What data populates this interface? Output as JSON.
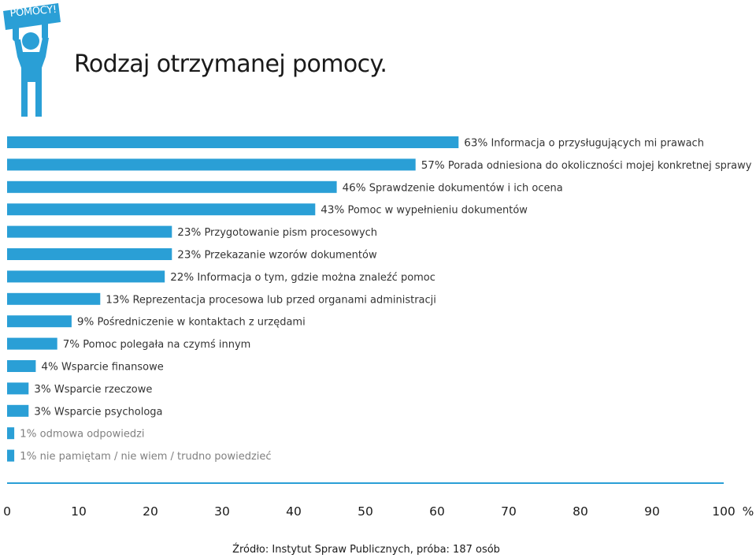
{
  "badge": {
    "label": "POMOCY!"
  },
  "header": {
    "title": "Rodzaj otrzymanej pomocy."
  },
  "chart_data": {
    "type": "bar",
    "orientation": "horizontal",
    "title": "Rodzaj otrzymanej pomocy.",
    "xlim": [
      0,
      100
    ],
    "x_ticks": [
      "0",
      "10",
      "20",
      "30",
      "40",
      "50",
      "60",
      "70",
      "80",
      "90",
      "100"
    ],
    "x_unit": "%",
    "grid": false,
    "bar_color": "#2a9fd6",
    "muted_color": "#808080",
    "items": [
      {
        "pct": "63%",
        "value": 63,
        "label": "Informacja o przysługujących mi prawach",
        "muted": false
      },
      {
        "pct": "57%",
        "value": 57,
        "label": "Porada odniesiona do okoliczności mojej konkretnej sprawy",
        "muted": false
      },
      {
        "pct": "46%",
        "value": 46,
        "label": "Sprawdzenie dokumentów i ich ocena",
        "muted": false
      },
      {
        "pct": "43%",
        "value": 43,
        "label": "Pomoc w wypełnieniu dokumentów",
        "muted": false
      },
      {
        "pct": "23%",
        "value": 23,
        "label": "Przygotowanie pism procesowych",
        "muted": false
      },
      {
        "pct": "23%",
        "value": 23,
        "label": "Przekazanie wzorów dokumentów",
        "muted": false
      },
      {
        "pct": "22%",
        "value": 22,
        "label": "Informacja o tym, gdzie można znaleźć pomoc",
        "muted": false
      },
      {
        "pct": "13%",
        "value": 13,
        "label": "Reprezentacja procesowa lub przed organami administracji",
        "muted": false
      },
      {
        "pct": "9%",
        "value": 9,
        "label": "Pośredniczenie w kontaktach z urzędami",
        "muted": false
      },
      {
        "pct": "7%",
        "value": 7,
        "label": "Pomoc polegała na czymś innym",
        "muted": false
      },
      {
        "pct": "4%",
        "value": 4,
        "label": "Wsparcie finansowe",
        "muted": false
      },
      {
        "pct": "3%",
        "value": 3,
        "label": "Wsparcie rzeczowe",
        "muted": false
      },
      {
        "pct": "3%",
        "value": 3,
        "label": "Wsparcie psychologa",
        "muted": false
      },
      {
        "pct": "1%",
        "value": 1,
        "label": "odmowa odpowiedzi",
        "muted": true
      },
      {
        "pct": "1%",
        "value": 1,
        "label": "nie pamiętam / nie wiem / trudno powiedzieć",
        "muted": true
      }
    ]
  },
  "footer": {
    "source": "Źródło: Instytut Spraw Publicznych, próba: 187 osób"
  }
}
